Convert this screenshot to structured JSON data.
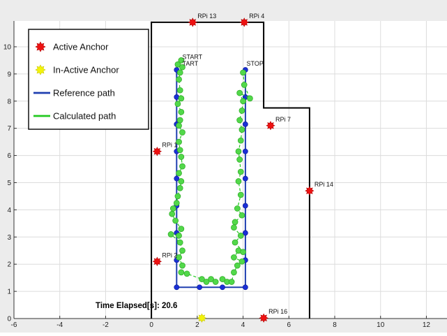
{
  "chart_data": {
    "type": "scatter",
    "xlim": [
      -6,
      12.9
    ],
    "ylim": [
      0,
      10.95
    ],
    "x_ticks": [
      "-6",
      "-4",
      "-2",
      "0",
      "2",
      "4",
      "6",
      "8",
      "10",
      "12"
    ],
    "y_ticks": [
      "0",
      "1",
      "2",
      "3",
      "4",
      "5",
      "6",
      "7",
      "8",
      "9",
      "10"
    ],
    "grid": true,
    "legend": {
      "placement": "top-left",
      "items": [
        {
          "label": "Active Anchor",
          "color": "#ee1111",
          "kind": "star"
        },
        {
          "label": "In-Active Anchor",
          "color": "#f3f30a",
          "kind": "star"
        },
        {
          "label": "Reference path",
          "color": "#1f3fb0",
          "kind": "line"
        },
        {
          "label": "Calculated path",
          "color": "#22c91f",
          "kind": "line"
        }
      ]
    },
    "boundary": [
      [
        0,
        0
      ],
      [
        0,
        10.9
      ],
      [
        4.9,
        10.9
      ],
      [
        4.9,
        7.75
      ],
      [
        6.9,
        7.75
      ],
      [
        6.9,
        0
      ]
    ],
    "anchors": [
      {
        "name": "RPi 13",
        "x": 1.8,
        "y": 10.9,
        "active": true
      },
      {
        "name": "RPi 4",
        "x": 4.05,
        "y": 10.9,
        "active": true
      },
      {
        "name": "RPi 1",
        "x": 0.25,
        "y": 6.15,
        "active": true
      },
      {
        "name": "RPi 7",
        "x": 5.2,
        "y": 7.1,
        "active": true
      },
      {
        "name": "RPi 14",
        "x": 6.9,
        "y": 4.7,
        "active": true
      },
      {
        "name": "RPi 2",
        "x": 0.25,
        "y": 2.1,
        "active": true
      },
      {
        "name": "RPi 16",
        "x": 4.9,
        "y": 0.02,
        "active": true
      },
      {
        "name": "",
        "x": 2.2,
        "y": 0.02,
        "active": false
      }
    ],
    "reference_path": [
      [
        1.1,
        9.15
      ],
      [
        1.1,
        8.15
      ],
      [
        1.1,
        7.15
      ],
      [
        1.1,
        6.15
      ],
      [
        1.1,
        5.15
      ],
      [
        1.1,
        4.15
      ],
      [
        1.1,
        3.15
      ],
      [
        1.1,
        2.15
      ],
      [
        1.1,
        1.15
      ],
      [
        2.1,
        1.15
      ],
      [
        3.1,
        1.15
      ],
      [
        4.1,
        1.15
      ],
      [
        4.1,
        2.15
      ],
      [
        4.1,
        3.15
      ],
      [
        4.1,
        4.15
      ],
      [
        4.1,
        5.15
      ],
      [
        4.1,
        6.15
      ],
      [
        4.1,
        7.15
      ],
      [
        4.1,
        8.15
      ],
      [
        4.1,
        9.15
      ]
    ],
    "calculated_path": [
      [
        1.3,
        9.5
      ],
      [
        1.15,
        9.35
      ],
      [
        1.35,
        9.25
      ],
      [
        1.25,
        9.05
      ],
      [
        1.2,
        8.8
      ],
      [
        1.25,
        8.4
      ],
      [
        1.3,
        8.1
      ],
      [
        1.15,
        7.9
      ],
      [
        1.3,
        7.6
      ],
      [
        1.25,
        7.3
      ],
      [
        1.2,
        7.1
      ],
      [
        1.35,
        6.85
      ],
      [
        1.2,
        6.5
      ],
      [
        1.25,
        6.2
      ],
      [
        1.3,
        5.95
      ],
      [
        1.35,
        5.6
      ],
      [
        1.2,
        5.35
      ],
      [
        1.3,
        5.05
      ],
      [
        1.25,
        4.8
      ],
      [
        1.15,
        4.5
      ],
      [
        1.1,
        4.25
      ],
      [
        0.95,
        4.05
      ],
      [
        0.9,
        3.85
      ],
      [
        1.05,
        3.6
      ],
      [
        1.3,
        3.3
      ],
      [
        1.2,
        3.05
      ],
      [
        0.85,
        3.1
      ],
      [
        1.25,
        2.8
      ],
      [
        1.35,
        2.5
      ],
      [
        1.2,
        2.25
      ],
      [
        1.35,
        1.95
      ],
      [
        1.3,
        1.7
      ],
      [
        1.55,
        1.65
      ],
      [
        2.2,
        1.45
      ],
      [
        2.4,
        1.35
      ],
      [
        2.6,
        1.45
      ],
      [
        2.8,
        1.35
      ],
      [
        3.1,
        1.45
      ],
      [
        3.3,
        1.35
      ],
      [
        3.5,
        1.35
      ],
      [
        3.6,
        1.7
      ],
      [
        3.75,
        1.95
      ],
      [
        3.95,
        2.1
      ],
      [
        3.6,
        2.25
      ],
      [
        3.8,
        2.5
      ],
      [
        4.0,
        2.45
      ],
      [
        3.65,
        2.8
      ],
      [
        3.9,
        3.05
      ],
      [
        3.6,
        3.35
      ],
      [
        3.65,
        3.55
      ],
      [
        3.95,
        3.8
      ],
      [
        3.75,
        4.05
      ],
      [
        3.9,
        4.55
      ],
      [
        3.8,
        5.05
      ],
      [
        3.9,
        5.4
      ],
      [
        3.85,
        5.85
      ],
      [
        3.8,
        6.15
      ],
      [
        3.9,
        6.55
      ],
      [
        3.95,
        6.95
      ],
      [
        3.85,
        7.3
      ],
      [
        3.95,
        7.65
      ],
      [
        4.0,
        8.0
      ],
      [
        3.85,
        8.3
      ],
      [
        4.3,
        8.1
      ],
      [
        4.05,
        8.6
      ],
      [
        4.0,
        9.05
      ]
    ],
    "markers": [
      {
        "text": "START",
        "x": 1.35,
        "y": 9.55
      },
      {
        "text": "TART",
        "x": 1.35,
        "y": 9.3
      },
      {
        "text": "STOP",
        "x": 4.15,
        "y": 9.3
      }
    ],
    "annotation": "Time Elapsed[s]: 20.6"
  }
}
